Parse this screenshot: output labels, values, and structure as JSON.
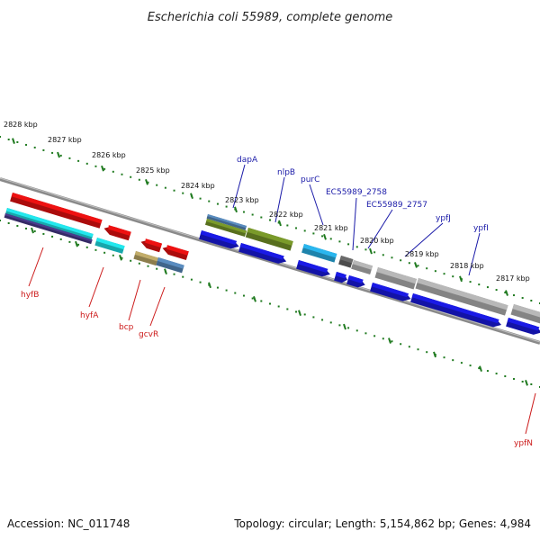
{
  "title": "Escherichia coli 55989, complete genome",
  "footer": {
    "accession": "Accession: NC_011748",
    "stats": "Topology: circular; Length: 5,154,862 bp; Genes: 4,984"
  },
  "colors": {
    "tick": "#1f7a1f",
    "backbone": "#8c8c8c",
    "label_forward": "#1a1aa8",
    "label_reverse": "#cc1a1a",
    "red": "#ee1111",
    "cyan": "#22e8ee",
    "navy": "#4a3b8c",
    "steel": "#5a8cbf",
    "olive": "#7a9a2a",
    "tan": "#c2ad6a",
    "blue": "#1a1ae6",
    "sky": "#2ab6ee",
    "gray": "#b8b8b8",
    "darkgray": "#6a6a6a"
  },
  "kbp_labels": [
    "2828 kbp",
    "2827 kbp",
    "2826 kbp",
    "2825 kbp",
    "2824 kbp",
    "2823 kbp",
    "2822 kbp",
    "2821 kbp",
    "2820 kbp",
    "2819 kbp",
    "2818 kbp",
    "2817 kbp"
  ],
  "gene_labels_forward": [
    "dapA",
    "nlpB",
    "purC",
    "EC55989_2758",
    "EC55989_2757",
    "ypfJ",
    "ypfI"
  ],
  "gene_labels_reverse": [
    "hyfB",
    "hyfA",
    "bcp",
    "gcvR",
    "ypfN"
  ]
}
